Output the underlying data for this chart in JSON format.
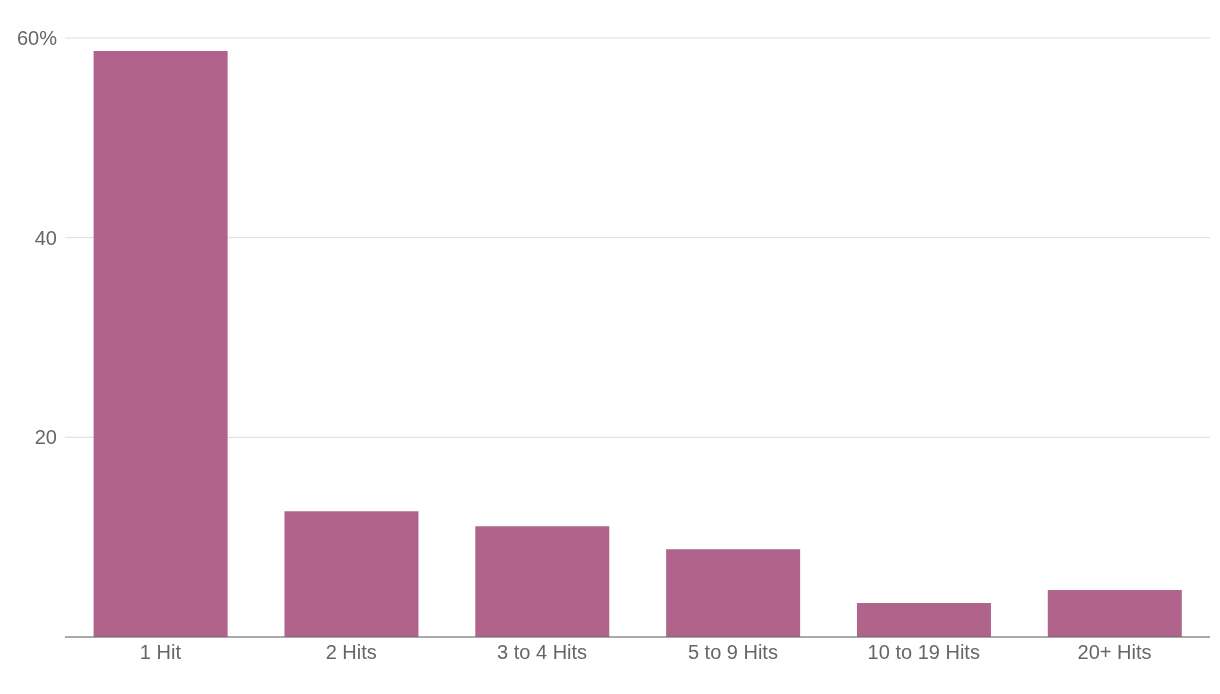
{
  "chart_data": {
    "type": "bar",
    "categories": [
      "1 Hit",
      "2 Hits",
      "3 to 4 Hits",
      "5 to 9 Hits",
      "10 to 19 Hits",
      "20+ Hits"
    ],
    "values": [
      58.7,
      12.6,
      11.1,
      8.8,
      3.4,
      4.7
    ],
    "color": "#b0648b",
    "ylim": [
      0,
      60
    ],
    "yticks": [
      {
        "value": 0,
        "label": null
      },
      20,
      40,
      {
        "value": 60,
        "label": "60%"
      }
    ],
    "grid": "y"
  }
}
